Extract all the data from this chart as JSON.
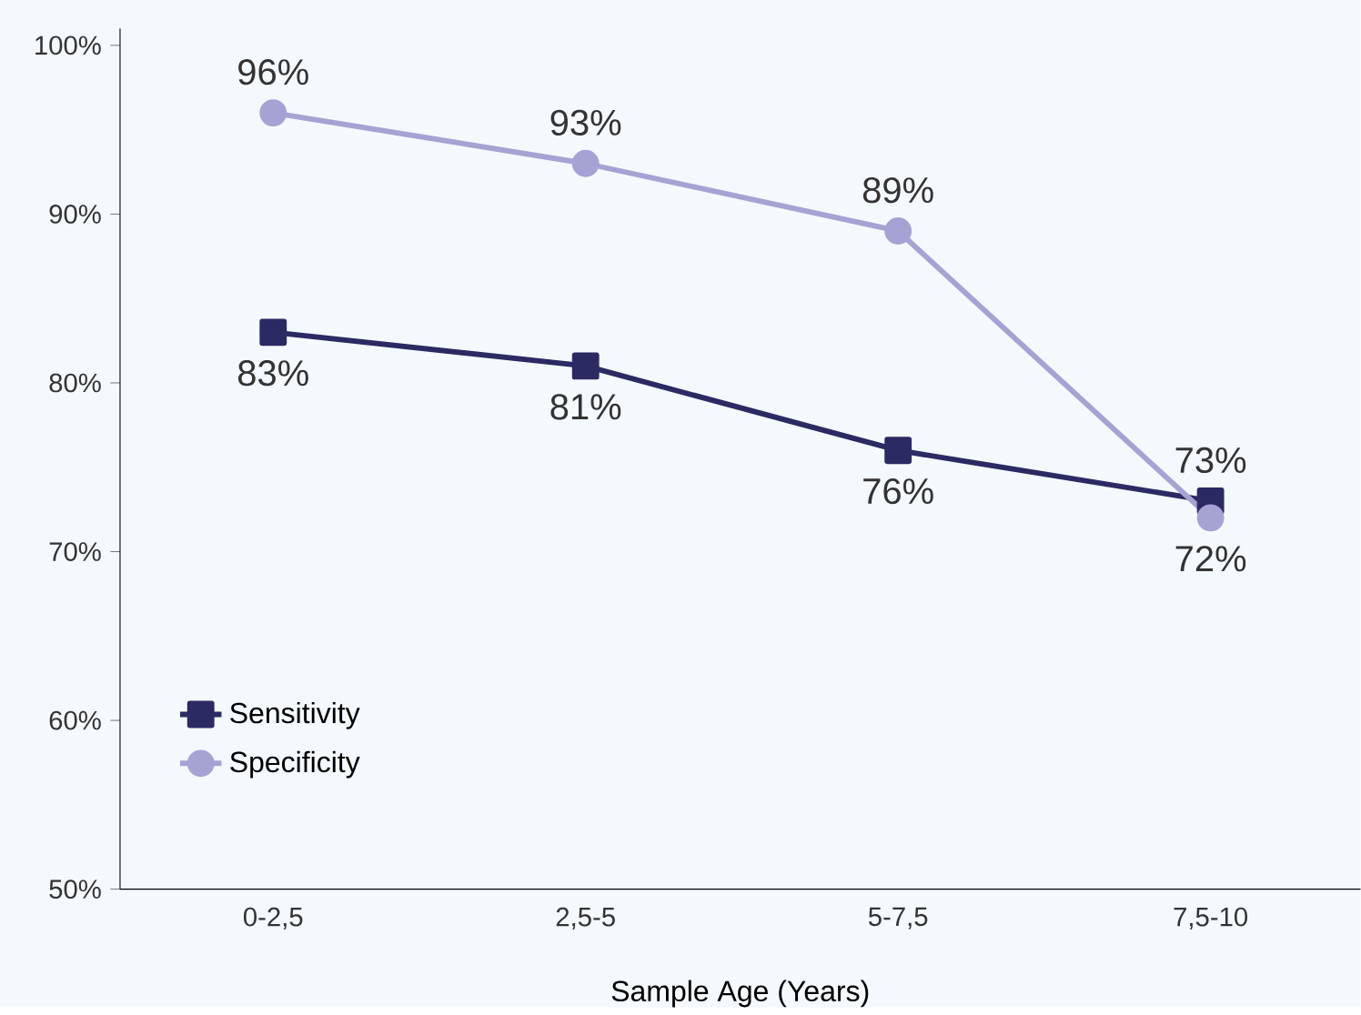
{
  "chart_data": {
    "type": "line",
    "xlabel": "Sample Age (Years)",
    "categories": [
      "0-2,5",
      "2,5-5",
      "5-7,5",
      "7,5-10"
    ],
    "ylim": [
      50,
      101
    ],
    "yticks": [
      {
        "value": 50,
        "label": "50%"
      },
      {
        "value": 60,
        "label": "60%"
      },
      {
        "value": 70,
        "label": "70%"
      },
      {
        "value": 80,
        "label": "80%"
      },
      {
        "value": 90,
        "label": "90%"
      },
      {
        "value": 100,
        "label": "100%"
      }
    ],
    "series": [
      {
        "name": "Sensitivity",
        "color": "#2b2a63",
        "marker": "square",
        "values": [
          83,
          81,
          76,
          73
        ],
        "value_labels": [
          "83%",
          "81%",
          "76%",
          "73%"
        ]
      },
      {
        "name": "Specificity",
        "color": "#a5a3d3",
        "marker": "circle",
        "values": [
          96,
          93,
          89,
          72
        ],
        "value_labels": [
          "96%",
          "93%",
          "89%",
          "72%"
        ]
      }
    ],
    "legend": "bottom left",
    "grid": false
  }
}
